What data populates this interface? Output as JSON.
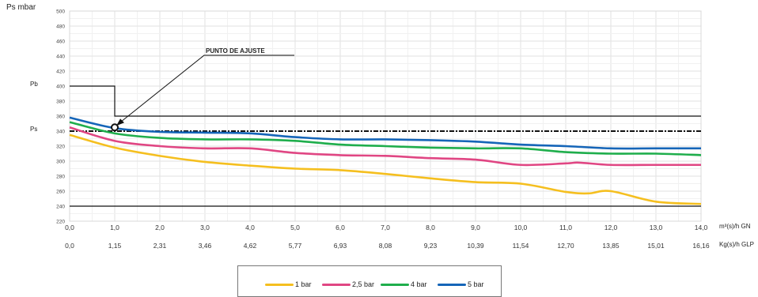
{
  "header": {
    "y_unit_label": "Ps  mbar"
  },
  "side_labels": {
    "pb": "Pb",
    "ps": "Ps"
  },
  "annotation": {
    "text": "PUNTO DE AJUSTE"
  },
  "chart_data": {
    "type": "line",
    "x_primary": {
      "label": "m³(s)/h GN",
      "values": [
        0,
        1,
        2,
        3,
        4,
        5,
        6,
        7,
        8,
        9,
        10,
        11,
        12,
        13,
        14
      ],
      "tick_labels": [
        "0,0",
        "1,0",
        "2,0",
        "3,0",
        "4,0",
        "5,0",
        "6,0",
        "7,0",
        "8,0",
        "9,0",
        "10,0",
        "11,0",
        "12,0",
        "13,0",
        "14,0"
      ]
    },
    "x_secondary": {
      "label": "Kg(s)/h GLP",
      "tick_labels": [
        "0,0",
        "1,15",
        "2,31",
        "3,46",
        "4,62",
        "5,77",
        "6,93",
        "8,08",
        "9,23",
        "10,39",
        "11,54",
        "12,70",
        "13,85",
        "15,01",
        "16,16"
      ]
    },
    "ylim": [
      220,
      500
    ],
    "y_ticks": [
      220,
      240,
      260,
      280,
      300,
      320,
      340,
      360,
      380,
      400,
      420,
      440,
      460,
      480,
      500
    ],
    "grid": true,
    "legend_placement": "bottom",
    "reference_lines": {
      "pb_high": 400,
      "pb_low": 360,
      "ps": 340,
      "lower_limit": 240,
      "step_x": 1
    },
    "set_point": {
      "x": 1,
      "y": 345
    },
    "series": [
      {
        "name": "1 bar",
        "color": "#f5bf1f",
        "points": [
          [
            0,
            335
          ],
          [
            1,
            318
          ],
          [
            2,
            307
          ],
          [
            3,
            299
          ],
          [
            4,
            294
          ],
          [
            5,
            290
          ],
          [
            6,
            288
          ],
          [
            7,
            283
          ],
          [
            8,
            277
          ],
          [
            9,
            272
          ],
          [
            10,
            270
          ],
          [
            11,
            259
          ],
          [
            11.5,
            257
          ],
          [
            12,
            260
          ],
          [
            13,
            246
          ],
          [
            14,
            243
          ]
        ]
      },
      {
        "name": "2,5 bar",
        "color": "#e04683",
        "points": [
          [
            0,
            345
          ],
          [
            1,
            327
          ],
          [
            2,
            320
          ],
          [
            3,
            317
          ],
          [
            4,
            317
          ],
          [
            5,
            311
          ],
          [
            6,
            308
          ],
          [
            7,
            307
          ],
          [
            8,
            304
          ],
          [
            9,
            302
          ],
          [
            10,
            295
          ],
          [
            11,
            297
          ],
          [
            11.3,
            298
          ],
          [
            12,
            295
          ],
          [
            13,
            295
          ],
          [
            14,
            295
          ]
        ]
      },
      {
        "name": "4 bar",
        "color": "#1fae4c",
        "points": [
          [
            0,
            352
          ],
          [
            1,
            337
          ],
          [
            2,
            331
          ],
          [
            3,
            329
          ],
          [
            4,
            329
          ],
          [
            5,
            327
          ],
          [
            6,
            322
          ],
          [
            7,
            320
          ],
          [
            8,
            318
          ],
          [
            9,
            317
          ],
          [
            10,
            317
          ],
          [
            11,
            312
          ],
          [
            12,
            310
          ],
          [
            13,
            310
          ],
          [
            14,
            308
          ]
        ]
      },
      {
        "name": "5 bar",
        "color": "#1565b8",
        "points": [
          [
            0,
            358
          ],
          [
            1,
            344
          ],
          [
            2,
            339
          ],
          [
            3,
            338
          ],
          [
            4,
            337
          ],
          [
            5,
            332
          ],
          [
            6,
            329
          ],
          [
            7,
            329
          ],
          [
            8,
            328
          ],
          [
            9,
            326
          ],
          [
            10,
            322
          ],
          [
            11,
            320
          ],
          [
            12,
            317
          ],
          [
            13,
            317
          ],
          [
            14,
            317
          ]
        ]
      }
    ]
  }
}
